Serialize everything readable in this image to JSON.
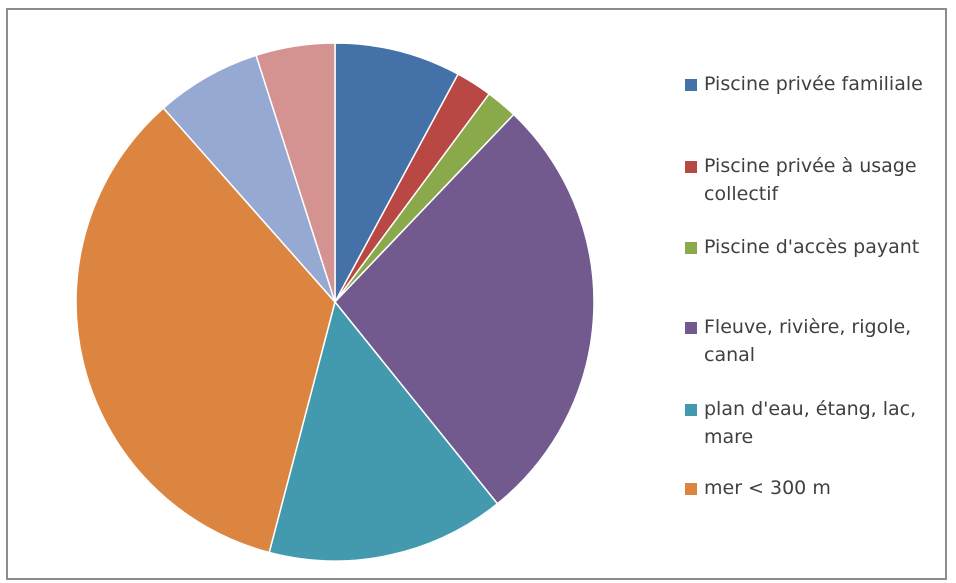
{
  "chart_data": {
    "type": "pie",
    "title": "",
    "legend_position": "right",
    "slices": [
      {
        "label": "Piscine privée familiale",
        "value": 8,
        "color": "#4472a8",
        "in_legend": true
      },
      {
        "label": "Piscine privée à usage collectif",
        "value": 2.3,
        "color": "#b94744",
        "in_legend": true
      },
      {
        "label": "Piscine d'accès payant",
        "value": 2,
        "color": "#8aa94b",
        "in_legend": true
      },
      {
        "label": "Fleuve, rivière, rigole, canal",
        "value": 27.5,
        "color": "#725a8f",
        "in_legend": true
      },
      {
        "label": "plan d'eau, étang, lac, mare",
        "value": 15.1,
        "color": "#4399ae",
        "in_legend": true
      },
      {
        "label": "mer < 300 m",
        "value": 34.9,
        "color": "#dc8540",
        "in_legend": true
      },
      {
        "label": "",
        "value": 6.7,
        "color": "#95a9d3",
        "in_legend": false
      },
      {
        "label": "",
        "value": 5,
        "color": "#d49291",
        "in_legend": false
      }
    ]
  }
}
